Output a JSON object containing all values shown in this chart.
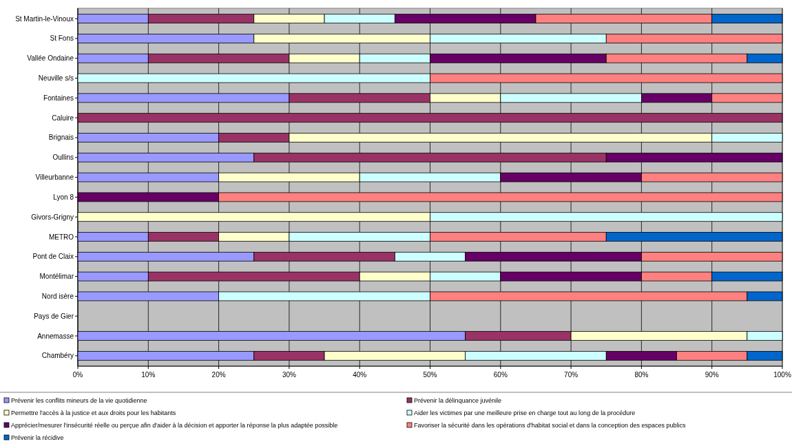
{
  "chart_data": {
    "type": "bar",
    "orientation": "horizontal",
    "stacked": true,
    "grid": "x",
    "legend": "bottom",
    "categories": [
      "St Martin-le-Vinoux",
      "St Fons",
      "Vallée Ondaine",
      "Neuville s/s",
      "Fontaines",
      "Caluire",
      "Brignais",
      "Oullins",
      "Villeurbanne",
      "Lyon 8",
      "Givors-Grigny",
      "METRO",
      "Pont de Claix",
      "Montélimar",
      "Nord isère",
      "Pays de Gier",
      "Annemasse",
      "Chambéry"
    ],
    "xlim": [
      0,
      100
    ],
    "xticks": [
      {
        "value": 0,
        "label": "0%"
      },
      {
        "value": 10,
        "label": "10%"
      },
      {
        "value": 20,
        "label": "20%"
      },
      {
        "value": 30,
        "label": "30%"
      },
      {
        "value": 40,
        "label": "40%"
      },
      {
        "value": 50,
        "label": "50%"
      },
      {
        "value": 60,
        "label": "60%"
      },
      {
        "value": 70,
        "label": "70%"
      },
      {
        "value": 80,
        "label": "80%"
      },
      {
        "value": 90,
        "label": "90%"
      },
      {
        "value": 100,
        "label": "100%"
      }
    ],
    "series": [
      {
        "name": "Prévenir les conflits mineurs de la vie quotidienne",
        "color": "#9999ff",
        "values": [
          10,
          25,
          10,
          null,
          30,
          null,
          20,
          25,
          20,
          null,
          null,
          10,
          25,
          10,
          20,
          null,
          55,
          25
        ]
      },
      {
        "name": "Prévenir la délinquance juvénile",
        "color": "#993366",
        "values": [
          15,
          null,
          20,
          null,
          20,
          100,
          10,
          50,
          null,
          null,
          null,
          10,
          20,
          30,
          null,
          null,
          15,
          10
        ]
      },
      {
        "name": "Permettre l'accès à la justice et aux droits pour les habitants",
        "color": "#ffffcc",
        "values": [
          10,
          25,
          10,
          null,
          10,
          null,
          60,
          null,
          20,
          null,
          50,
          10,
          null,
          10,
          null,
          null,
          25,
          20
        ]
      },
      {
        "name": "Aider les victimes par une meilleure prise en charge tout au long de la procédure",
        "color": "#ccffff",
        "values": [
          10,
          25,
          10,
          50,
          20,
          null,
          10,
          null,
          20,
          null,
          50,
          20,
          10,
          10,
          30,
          null,
          5,
          20
        ]
      },
      {
        "name": "Apprécier/mesurer l'insécurité réelle ou perçue afin d'aider à la décision et apporter la réponse la plus adaptée possible",
        "color": "#660066",
        "values": [
          20,
          null,
          25,
          null,
          10,
          null,
          null,
          25,
          20,
          20,
          null,
          null,
          25,
          20,
          null,
          null,
          null,
          10
        ]
      },
      {
        "name": "Favoriser la sécurité dans les opérations d'habitat social et dans la conception des espaces publics",
        "color": "#ff8080",
        "values": [
          25,
          25,
          20,
          50,
          10,
          null,
          null,
          null,
          20,
          80,
          null,
          25,
          20,
          10,
          45,
          null,
          null,
          10
        ]
      },
      {
        "name": "Prévenir la récidive",
        "color": "#0066cc",
        "values": [
          10,
          null,
          5,
          null,
          null,
          null,
          null,
          null,
          null,
          null,
          null,
          25,
          null,
          10,
          5,
          null,
          null,
          5
        ]
      }
    ]
  }
}
